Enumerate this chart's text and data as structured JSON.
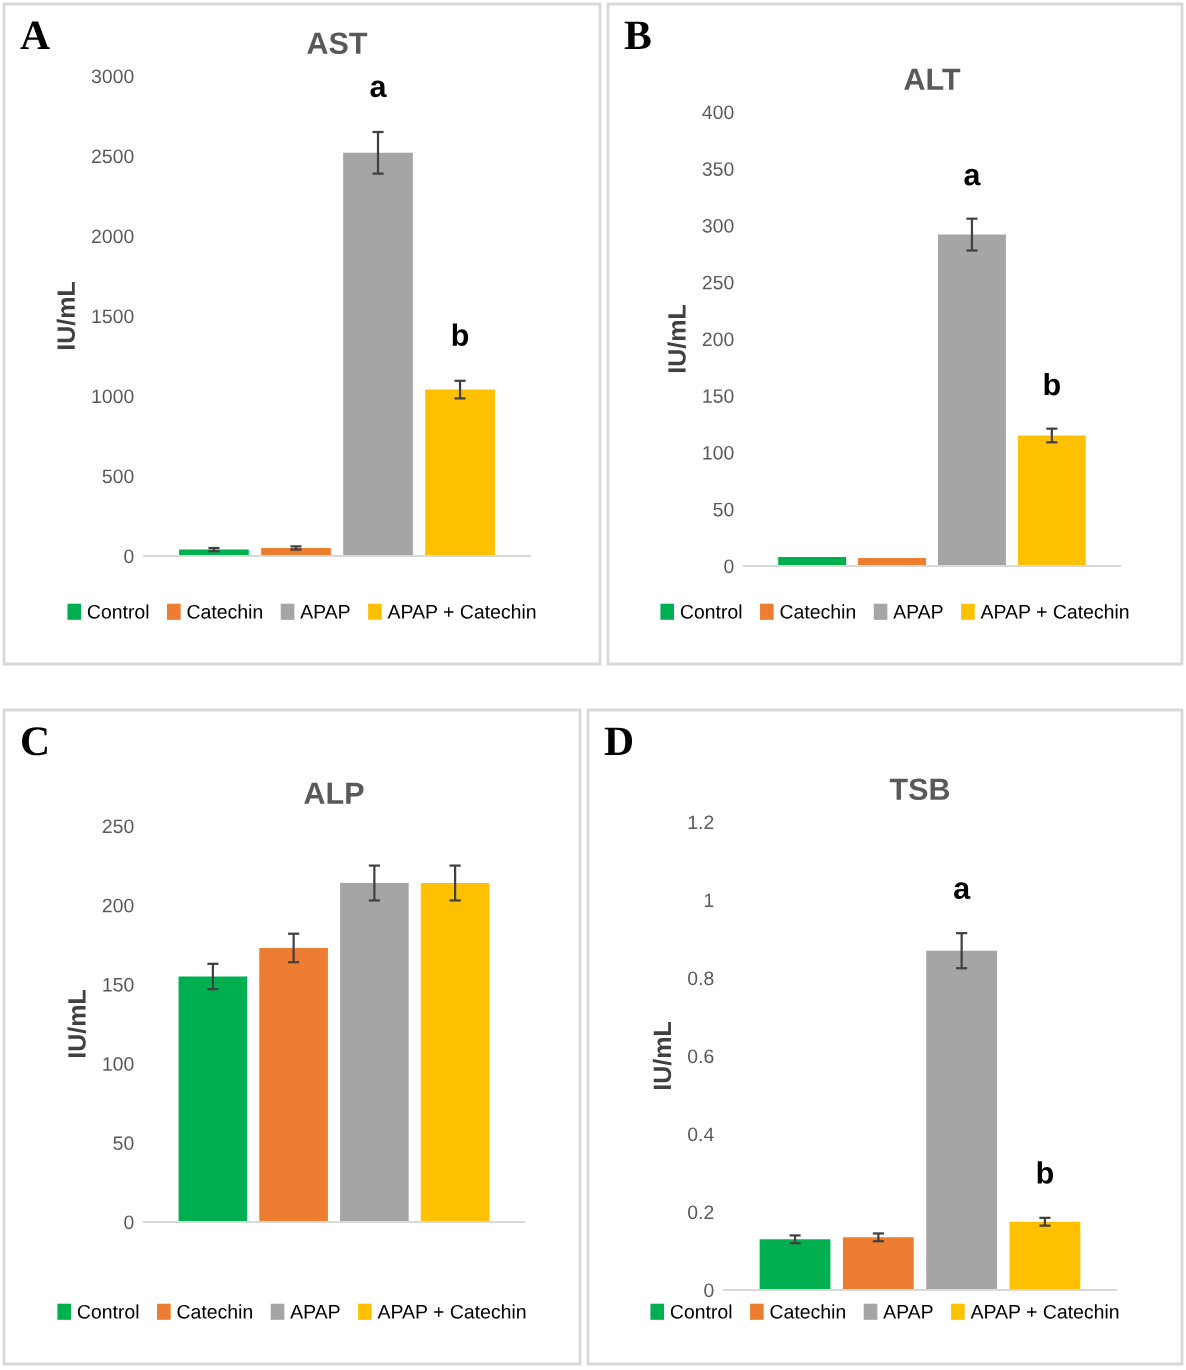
{
  "chart_data": [
    {
      "type": "bar",
      "title": "AST",
      "ylabel": "IU/mL",
      "categories": [
        null
      ],
      "ylim": [
        0,
        3000
      ],
      "yticks": [
        0,
        500,
        1000,
        1500,
        2000,
        2500,
        3000
      ],
      "grid": false,
      "legend": "bottom",
      "annotations": [
        "A",
        "a",
        "b"
      ],
      "series": [
        {
          "name": "Control",
          "color": "#00b050",
          "values": [
            40
          ],
          "errors": [
            10
          ]
        },
        {
          "name": "Catechin",
          "color": "#ed7d31",
          "values": [
            50
          ],
          "errors": [
            10
          ]
        },
        {
          "name": "APAP",
          "color": "#a5a5a5",
          "values": [
            2520
          ],
          "errors": [
            130
          ]
        },
        {
          "name": "APAP + Catechin",
          "color": "#ffc000",
          "values": [
            1040
          ],
          "errors": [
            55
          ]
        }
      ]
    },
    {
      "type": "bar",
      "title": "ALT",
      "ylabel": "IU/mL",
      "categories": [
        null
      ],
      "ylim": [
        0,
        400
      ],
      "yticks": [
        0,
        50,
        100,
        150,
        200,
        250,
        300,
        350,
        400
      ],
      "grid": false,
      "legend": "bottom",
      "annotations": [
        "B",
        "a",
        "b"
      ],
      "series": [
        {
          "name": "Control",
          "color": "#00b050",
          "values": [
            8
          ],
          "errors": [
            null
          ]
        },
        {
          "name": "Catechin",
          "color": "#ed7d31",
          "values": [
            7
          ],
          "errors": [
            null
          ]
        },
        {
          "name": "APAP",
          "color": "#a5a5a5",
          "values": [
            292
          ],
          "errors": [
            14
          ]
        },
        {
          "name": "APAP + Catechin",
          "color": "#ffc000",
          "values": [
            115
          ],
          "errors": [
            6
          ]
        }
      ]
    },
    {
      "type": "bar",
      "title": "ALP",
      "ylabel": "IU/mL",
      "categories": [
        null
      ],
      "ylim": [
        0,
        250
      ],
      "yticks": [
        0,
        50,
        100,
        150,
        200,
        250
      ],
      "grid": false,
      "legend": "bottom",
      "annotations": [
        "C"
      ],
      "series": [
        {
          "name": "Control",
          "color": "#00b050",
          "values": [
            155
          ],
          "errors": [
            8
          ]
        },
        {
          "name": "Catechin",
          "color": "#ed7d31",
          "values": [
            173
          ],
          "errors": [
            9
          ]
        },
        {
          "name": "APAP",
          "color": "#a5a5a5",
          "values": [
            214
          ],
          "errors": [
            11
          ]
        },
        {
          "name": "APAP + Catechin",
          "color": "#ffc000",
          "values": [
            214
          ],
          "errors": [
            11
          ]
        }
      ]
    },
    {
      "type": "bar",
      "title": "TSB",
      "ylabel": "IU/mL",
      "categories": [
        null
      ],
      "ylim": [
        0,
        1.2
      ],
      "yticks": [
        0,
        0.2,
        0.4,
        0.6,
        0.8,
        1,
        1.2
      ],
      "grid": false,
      "legend": "bottom",
      "annotations": [
        "D",
        "a",
        "b"
      ],
      "series": [
        {
          "name": "Control",
          "color": "#00b050",
          "values": [
            0.13
          ],
          "errors": [
            0.01
          ]
        },
        {
          "name": "Catechin",
          "color": "#ed7d31",
          "values": [
            0.135
          ],
          "errors": [
            0.01
          ]
        },
        {
          "name": "APAP",
          "color": "#a5a5a5",
          "values": [
            0.87
          ],
          "errors": [
            0.045
          ]
        },
        {
          "name": "APAP + Catechin",
          "color": "#ffc000",
          "values": [
            0.175
          ],
          "errors": [
            0.01
          ]
        }
      ]
    }
  ]
}
